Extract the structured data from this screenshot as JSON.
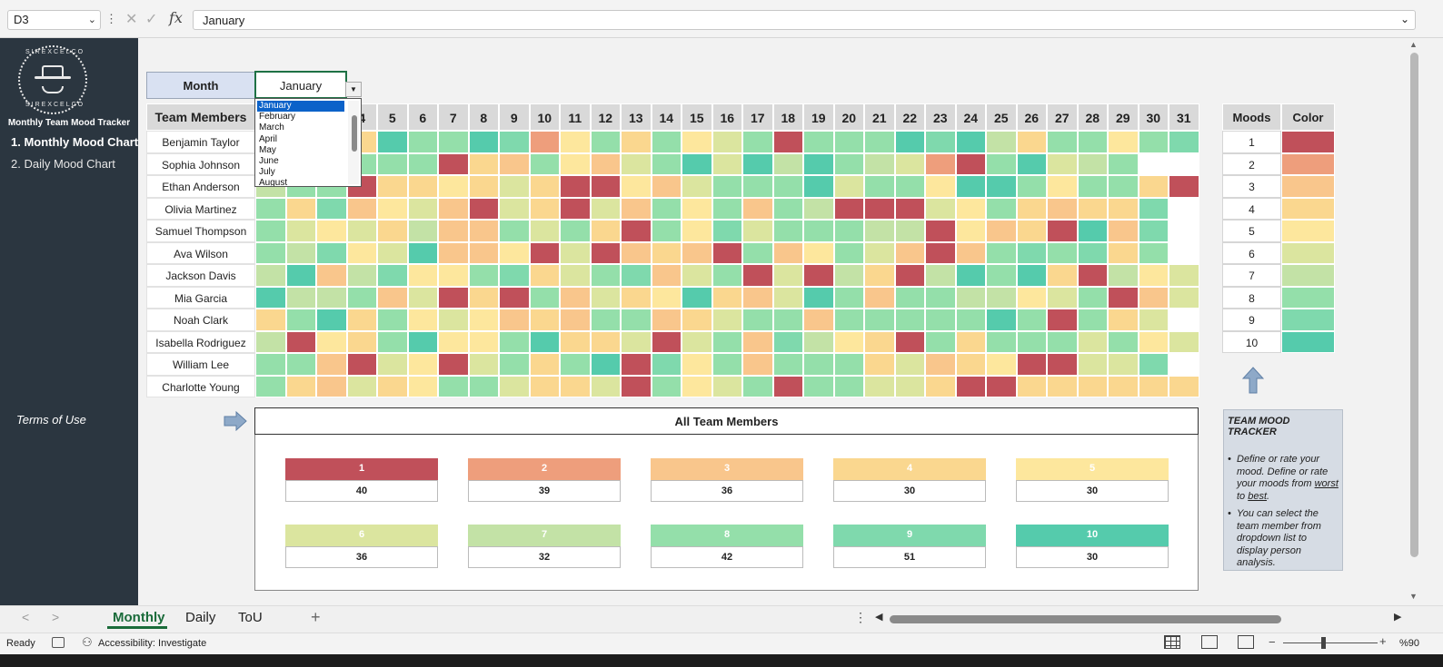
{
  "formula_bar": {
    "cell_ref": "D3",
    "formula": "January",
    "fx_label": "fx"
  },
  "sidebar": {
    "logo_text_top": "SIREXCELCO",
    "logo_text_bottom": "SIREXCELCO",
    "title": "Monthly Team Mood Tracker",
    "nav": [
      "1. Monthly Mood Chart",
      "2. Daily Mood Chart"
    ],
    "terms": "Terms of Use"
  },
  "month_selector": {
    "label": "Month",
    "value": "January",
    "options": [
      "January",
      "February",
      "March",
      "April",
      "May",
      "June",
      "July",
      "August"
    ],
    "selected_index": 0
  },
  "grid": {
    "members_header": "Team Members",
    "days": [
      1,
      2,
      3,
      4,
      5,
      6,
      7,
      8,
      9,
      10,
      11,
      12,
      13,
      14,
      15,
      16,
      17,
      18,
      19,
      20,
      21,
      22,
      23,
      24,
      25,
      26,
      27,
      28,
      29,
      30,
      31
    ],
    "members": [
      "Benjamin Taylor",
      "Sophia Johnson",
      "Ethan Anderson",
      "Olivia Martinez",
      "Samuel Thompson",
      "Ava Wilson",
      "Jackson Davis",
      "Mia Garcia",
      "Noah Clark",
      "Isabella Rodriguez",
      "William Lee",
      "Charlotte Young"
    ],
    "moods": [
      [
        6,
        7,
        4,
        4,
        10,
        8,
        8,
        10,
        9,
        2,
        5,
        8,
        4,
        8,
        5,
        6,
        8,
        1,
        8,
        8,
        8,
        10,
        9,
        10,
        7,
        4,
        8,
        8,
        5,
        8,
        9
      ],
      [
        6,
        7,
        4,
        8,
        8,
        8,
        1,
        4,
        3,
        8,
        5,
        3,
        6,
        8,
        10,
        6,
        10,
        7,
        10,
        8,
        7,
        6,
        2,
        1,
        8,
        10,
        6,
        7,
        8,
        0,
        0
      ],
      [
        7,
        8,
        8,
        1,
        4,
        4,
        5,
        4,
        6,
        4,
        1,
        1,
        5,
        3,
        6,
        8,
        8,
        8,
        10,
        6,
        8,
        8,
        5,
        10,
        10,
        8,
        5,
        8,
        8,
        4,
        1
      ],
      [
        8,
        4,
        9,
        3,
        5,
        6,
        3,
        1,
        6,
        4,
        1,
        6,
        3,
        8,
        5,
        8,
        3,
        8,
        7,
        1,
        1,
        1,
        6,
        5,
        8,
        4,
        3,
        4,
        4,
        9,
        0
      ],
      [
        8,
        6,
        5,
        6,
        4,
        7,
        3,
        3,
        8,
        6,
        8,
        4,
        1,
        8,
        5,
        9,
        6,
        8,
        8,
        8,
        7,
        7,
        1,
        5,
        3,
        4,
        1,
        10,
        3,
        9,
        0
      ],
      [
        8,
        7,
        9,
        5,
        6,
        10,
        3,
        3,
        5,
        1,
        6,
        1,
        3,
        4,
        3,
        1,
        8,
        3,
        5,
        8,
        6,
        3,
        1,
        3,
        8,
        9,
        8,
        9,
        4,
        8,
        0
      ],
      [
        7,
        10,
        3,
        7,
        9,
        5,
        5,
        8,
        9,
        4,
        6,
        8,
        9,
        3,
        6,
        8,
        1,
        6,
        1,
        7,
        4,
        1,
        7,
        10,
        8,
        10,
        4,
        1,
        7,
        5,
        6
      ],
      [
        10,
        7,
        7,
        8,
        3,
        6,
        1,
        4,
        1,
        8,
        3,
        6,
        4,
        5,
        10,
        4,
        3,
        6,
        10,
        8,
        3,
        8,
        8,
        7,
        7,
        5,
        6,
        8,
        1,
        3,
        6
      ],
      [
        4,
        8,
        10,
        4,
        8,
        5,
        6,
        5,
        3,
        4,
        3,
        8,
        8,
        3,
        4,
        6,
        8,
        8,
        3,
        8,
        8,
        8,
        8,
        8,
        10,
        8,
        1,
        8,
        4,
        6,
        0
      ],
      [
        7,
        1,
        5,
        4,
        8,
        10,
        5,
        5,
        8,
        10,
        4,
        4,
        6,
        1,
        6,
        8,
        3,
        9,
        7,
        5,
        4,
        1,
        8,
        4,
        8,
        8,
        8,
        6,
        8,
        5,
        6
      ],
      [
        8,
        8,
        3,
        1,
        6,
        5,
        1,
        6,
        8,
        4,
        8,
        10,
        1,
        9,
        5,
        8,
        3,
        8,
        8,
        8,
        4,
        6,
        3,
        4,
        5,
        1,
        1,
        6,
        6,
        9,
        0
      ],
      [
        8,
        4,
        3,
        6,
        4,
        5,
        8,
        8,
        6,
        4,
        4,
        6,
        1,
        8,
        5,
        6,
        8,
        1,
        8,
        8,
        6,
        6,
        4,
        1,
        1,
        4,
        4,
        4,
        4,
        4,
        4
      ]
    ]
  },
  "legend": {
    "header_moods": "Moods",
    "header_color": "Color",
    "levels": [
      1,
      2,
      3,
      4,
      5,
      6,
      7,
      8,
      9,
      10
    ],
    "colors": [
      "#c0505a",
      "#ee9e7c",
      "#f9c68c",
      "#fad78f",
      "#fde79d",
      "#dbe59f",
      "#c3e2a6",
      "#94dfaa",
      "#7fd9ad",
      "#55cbac"
    ]
  },
  "summary": {
    "title": "All Team Members",
    "items": [
      {
        "label": "1",
        "value": "40"
      },
      {
        "label": "2",
        "value": "39"
      },
      {
        "label": "3",
        "value": "36"
      },
      {
        "label": "4",
        "value": "30"
      },
      {
        "label": "5",
        "value": "30"
      },
      {
        "label": "6",
        "value": "36"
      },
      {
        "label": "7",
        "value": "32"
      },
      {
        "label": "8",
        "value": "42"
      },
      {
        "label": "9",
        "value": "51"
      },
      {
        "label": "10",
        "value": "30"
      }
    ]
  },
  "info": {
    "title": "TEAM MOOD TRACKER",
    "p1_a": "Define or rate your mood. Define or rate your moods from ",
    "p1_worst": "worst",
    "p1_b": " to ",
    "p1_best": "best",
    "p1_c": ".",
    "p2": "You can select the team member from dropdown list to display person analysis."
  },
  "tabs": [
    "Monthly",
    "Daily",
    "ToU"
  ],
  "active_tab": "Monthly",
  "status": {
    "ready": "Ready",
    "accessibility": "Accessibility: Investigate",
    "zoom": "%90"
  }
}
